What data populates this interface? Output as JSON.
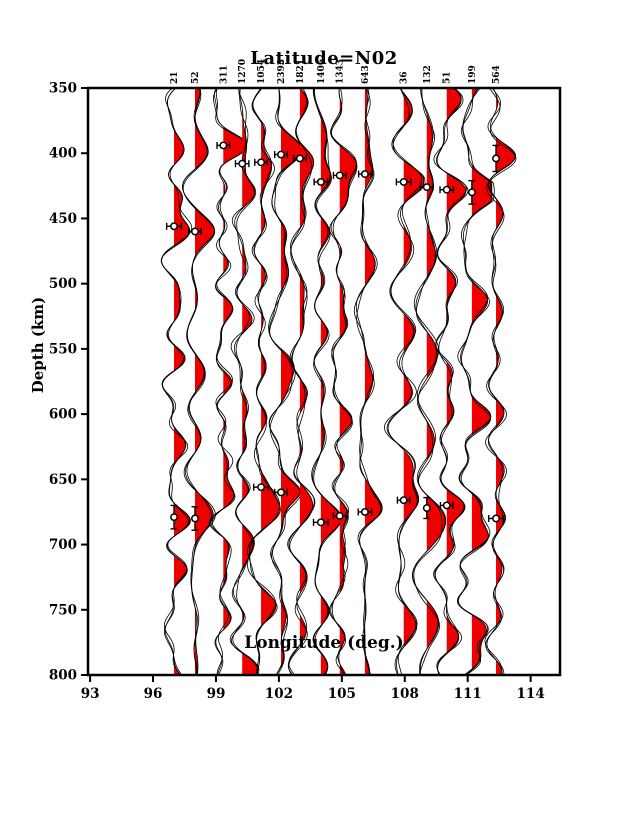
{
  "chart_data": {
    "type": "line",
    "variant": "seismic-receiver-function-wiggle-section",
    "title": "Latitude=N02",
    "xlabel": "Longitude (deg.)",
    "ylabel": "Depth (km)",
    "xlim": [
      92.9,
      115.4
    ],
    "ylim": [
      350,
      800
    ],
    "y_inverted": true,
    "grid": false,
    "xticks": [
      93,
      96,
      99,
      102,
      105,
      108,
      111,
      114
    ],
    "yticks": [
      350,
      400,
      450,
      500,
      550,
      600,
      650,
      700,
      750,
      800
    ],
    "positive_fill_color": "#ee0000",
    "line_color": "#000000",
    "frame_color": "#000000",
    "wiggle_amplitude_deg": 0.95,
    "traces": [
      {
        "lon": 97.0,
        "label": "21",
        "picks": [
          {
            "depth": 456,
            "err": 0.35,
            "orient": "h"
          },
          {
            "depth": 679,
            "err": 9,
            "orient": "v"
          }
        ]
      },
      {
        "lon": 98.0,
        "label": "52",
        "picks": [
          {
            "depth": 460,
            "err": 0.3,
            "orient": "h"
          },
          {
            "depth": 680,
            "err": 9,
            "orient": "v"
          }
        ]
      },
      {
        "lon": 99.35,
        "label": "311",
        "picks": [
          {
            "depth": 394,
            "err": 0.3,
            "orient": "h"
          }
        ]
      },
      {
        "lon": 100.25,
        "label": "1270",
        "picks": [
          {
            "depth": 408,
            "err": 0.32,
            "orient": "h"
          }
        ]
      },
      {
        "lon": 101.15,
        "label": "1054",
        "picks": [
          {
            "depth": 407,
            "err": 0.3,
            "orient": "h"
          },
          {
            "depth": 656,
            "err": 0.35,
            "orient": "h"
          }
        ]
      },
      {
        "lon": 102.1,
        "label": "2393",
        "picks": [
          {
            "depth": 401,
            "err": 0.3,
            "orient": "h"
          },
          {
            "depth": 660,
            "err": 0.3,
            "orient": "h"
          }
        ]
      },
      {
        "lon": 103.0,
        "label": "1821",
        "picks": [
          {
            "depth": 404,
            "err": 0.3,
            "orient": "h"
          }
        ]
      },
      {
        "lon": 104.0,
        "label": "1406",
        "picks": [
          {
            "depth": 422,
            "err": 0.32,
            "orient": "h"
          },
          {
            "depth": 683,
            "err": 0.35,
            "orient": "h"
          }
        ]
      },
      {
        "lon": 104.9,
        "label": "1343",
        "picks": [
          {
            "depth": 417,
            "err": 0.3,
            "orient": "h"
          },
          {
            "depth": 678,
            "err": 0.3,
            "orient": "h"
          }
        ]
      },
      {
        "lon": 106.1,
        "label": "643",
        "picks": [
          {
            "depth": 416,
            "err": 0.3,
            "orient": "h"
          },
          {
            "depth": 675,
            "err": 0.32,
            "orient": "h"
          }
        ]
      },
      {
        "lon": 107.95,
        "label": "36",
        "picks": [
          {
            "depth": 422,
            "err": 0.35,
            "orient": "h"
          },
          {
            "depth": 666,
            "err": 0.3,
            "orient": "h"
          }
        ]
      },
      {
        "lon": 109.05,
        "label": "132",
        "picks": [
          {
            "depth": 426,
            "err": 0.3,
            "orient": "h"
          },
          {
            "depth": 672,
            "err": 8,
            "orient": "v"
          }
        ]
      },
      {
        "lon": 110.0,
        "label": "51",
        "picks": [
          {
            "depth": 428,
            "err": 0.32,
            "orient": "h"
          },
          {
            "depth": 670,
            "err": 0.3,
            "orient": "h"
          }
        ]
      },
      {
        "lon": 111.2,
        "label": "199",
        "picks": [
          {
            "depth": 430,
            "err": 9,
            "orient": "v"
          }
        ]
      },
      {
        "lon": 112.35,
        "label": "564",
        "picks": [
          {
            "depth": 404,
            "err": 10,
            "orient": "v"
          },
          {
            "depth": 680,
            "err": 0.35,
            "orient": "h"
          }
        ]
      }
    ]
  }
}
